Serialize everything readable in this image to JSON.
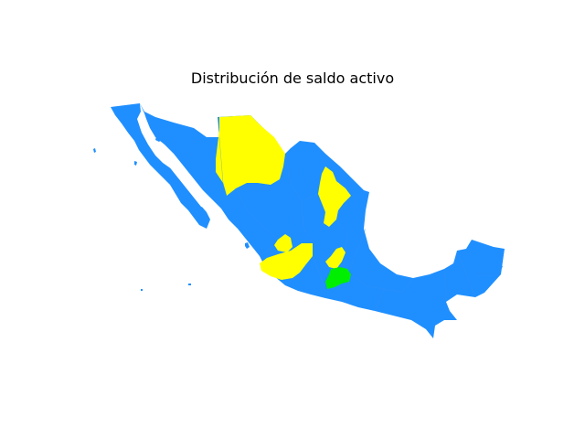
{
  "title": "Distribución de saldo activo",
  "colors": {
    "default": "#1f8fff",
    "highlight_yellow": "#ffff00",
    "highlight_green": "#00ee00",
    "background": "#ffffff"
  },
  "regions": [
    {
      "id": "chihuahua",
      "category": "yellow"
    },
    {
      "id": "nuevo-leon",
      "category": "yellow"
    },
    {
      "id": "aguascalientes",
      "category": "yellow"
    },
    {
      "id": "jalisco",
      "category": "yellow"
    },
    {
      "id": "queretaro",
      "category": "yellow"
    },
    {
      "id": "mexico-state",
      "category": "green"
    }
  ]
}
